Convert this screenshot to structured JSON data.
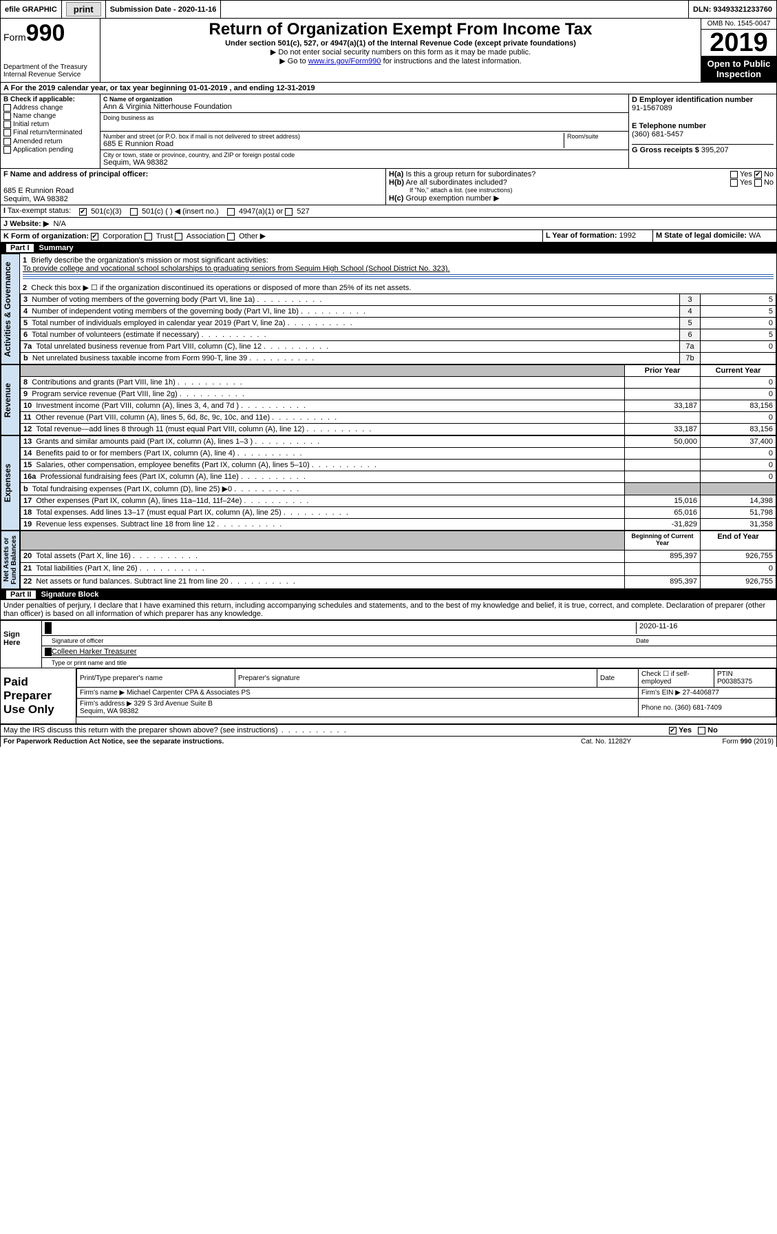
{
  "topbar": {
    "efile": "efile GRAPHIC",
    "print": "print",
    "subdate_label": "Submission Date - 2020-11-16",
    "dln": "DLN: 93493321233760"
  },
  "header": {
    "form_word": "Form",
    "form_num": "990",
    "title": "Return of Organization Exempt From Income Tax",
    "subtitle": "Under section 501(c), 527, or 4947(a)(1) of the Internal Revenue Code (except private foundations)",
    "note1": "Do not enter social security numbers on this form as it may be made public.",
    "note2_pre": "Go to ",
    "note2_link": "www.irs.gov/Form990",
    "note2_post": " for instructions and the latest information.",
    "dept": "Department of the Treasury\nInternal Revenue Service",
    "omb": "OMB No. 1545-0047",
    "year": "2019",
    "openpub": "Open to Public\nInspection",
    "period": "For the 2019 calendar year, or tax year beginning 01-01-2019    , and ending 12-31-2019"
  },
  "boxB": {
    "label": "B Check if applicable:",
    "items": [
      "Address change",
      "Name change",
      "Initial return",
      "Final return/terminated",
      "Amended return",
      "Application pending"
    ]
  },
  "boxC": {
    "label": "C Name of organization",
    "value": "Ann & Virginia Nitterhouse Foundation",
    "dba_label": "Doing business as",
    "dba": ""
  },
  "addr": {
    "label": "Number and street (or P.O. box if mail is not delivered to street address)",
    "room": "Room/suite",
    "street": "685 E Runnion Road",
    "city_label": "City or town, state or province, country, and ZIP or foreign postal code",
    "city": "Sequim, WA  98382"
  },
  "boxD": {
    "label": "D Employer identification number",
    "value": "91-1567089"
  },
  "boxE": {
    "label": "E Telephone number",
    "value": "(360) 681-5457"
  },
  "boxG": {
    "label": "G Gross receipts $",
    "value": "395,207"
  },
  "boxF": {
    "label": "F  Name and address of principal officer:",
    "addr1": "685 E Runnion Road",
    "addr2": "Sequim, WA  98382"
  },
  "boxH": {
    "a": "Is this a group return for subordinates?",
    "b": "Are all subordinates included?",
    "bnote": "If \"No,\" attach a list. (see instructions)",
    "c": "Group exemption number ▶",
    "yes": "Yes",
    "no": "No"
  },
  "taxexempt": {
    "label": "Tax-exempt status:",
    "c3": "501(c)(3)",
    "c": "501(c) (  ) ◀ (insert no.)",
    "a1": "4947(a)(1) or",
    "s527": "527"
  },
  "boxJ": {
    "label": "Website: ▶",
    "value": "N/A"
  },
  "boxK": {
    "label": "K Form of organization:",
    "corp": "Corporation",
    "trust": "Trust",
    "assoc": "Association",
    "other": "Other ▶"
  },
  "boxL": {
    "label": "L Year of formation:",
    "value": "1992"
  },
  "boxM": {
    "label": "M State of legal domicile:",
    "value": "WA"
  },
  "part1": {
    "label": "Part I",
    "title": "Summary"
  },
  "summary": {
    "l1_label": "Briefly describe the organization's mission or most significant activities:",
    "l1_text": "To provide college and vocational school scholarships to graduating seniors from Sequim High School (School District No. 323).",
    "l2": "Check this box ▶ ☐  if the organization discontinued its operations or disposed of more than 25% of its net assets.",
    "vlabel_ag": "Activities & Governance",
    "vlabel_rev": "Revenue",
    "vlabel_exp": "Expenses",
    "vlabel_na": "Net Assets or\nFund Balances",
    "rows_ag": [
      {
        "n": "3",
        "t": "Number of voting members of the governing body (Part VI, line 1a)",
        "c": "3",
        "v": "5"
      },
      {
        "n": "4",
        "t": "Number of independent voting members of the governing body (Part VI, line 1b)",
        "c": "4",
        "v": "5"
      },
      {
        "n": "5",
        "t": "Total number of individuals employed in calendar year 2019 (Part V, line 2a)",
        "c": "5",
        "v": "0"
      },
      {
        "n": "6",
        "t": "Total number of volunteers (estimate if necessary)",
        "c": "6",
        "v": "5"
      },
      {
        "n": "7a",
        "t": "Total unrelated business revenue from Part VIII, column (C), line 12",
        "c": "7a",
        "v": "0"
      },
      {
        "n": "b",
        "t": "Net unrelated business taxable income from Form 990-T, line 39",
        "c": "7b",
        "v": ""
      }
    ],
    "hdr_prior": "Prior Year",
    "hdr_curr": "Current Year",
    "rows_rev": [
      {
        "n": "8",
        "t": "Contributions and grants (Part VIII, line 1h)",
        "p": "",
        "c": "0"
      },
      {
        "n": "9",
        "t": "Program service revenue (Part VIII, line 2g)",
        "p": "",
        "c": "0"
      },
      {
        "n": "10",
        "t": "Investment income (Part VIII, column (A), lines 3, 4, and 7d )",
        "p": "33,187",
        "c": "83,156"
      },
      {
        "n": "11",
        "t": "Other revenue (Part VIII, column (A), lines 5, 6d, 8c, 9c, 10c, and 11e)",
        "p": "",
        "c": "0"
      },
      {
        "n": "12",
        "t": "Total revenue—add lines 8 through 11 (must equal Part VIII, column (A), line 12)",
        "p": "33,187",
        "c": "83,156"
      }
    ],
    "rows_exp": [
      {
        "n": "13",
        "t": "Grants and similar amounts paid (Part IX, column (A), lines 1–3 )",
        "p": "50,000",
        "c": "37,400"
      },
      {
        "n": "14",
        "t": "Benefits paid to or for members (Part IX, column (A), line 4)",
        "p": "",
        "c": "0"
      },
      {
        "n": "15",
        "t": "Salaries, other compensation, employee benefits (Part IX, column (A), lines 5–10)",
        "p": "",
        "c": "0"
      },
      {
        "n": "16a",
        "t": "Professional fundraising fees (Part IX, column (A), line 11e)",
        "p": "",
        "c": "0"
      },
      {
        "n": "b",
        "t": "Total fundraising expenses (Part IX, column (D), line 25) ▶0",
        "p": "—shade—",
        "c": "—shade—"
      },
      {
        "n": "17",
        "t": "Other expenses (Part IX, column (A), lines 11a–11d, 11f–24e)",
        "p": "15,016",
        "c": "14,398"
      },
      {
        "n": "18",
        "t": "Total expenses. Add lines 13–17 (must equal Part IX, column (A), line 25)",
        "p": "65,016",
        "c": "51,798"
      },
      {
        "n": "19",
        "t": "Revenue less expenses. Subtract line 18 from line 12",
        "p": "-31,829",
        "c": "31,358"
      }
    ],
    "hdr_beg": "Beginning of Current Year",
    "hdr_end": "End of Year",
    "rows_na": [
      {
        "n": "20",
        "t": "Total assets (Part X, line 16)",
        "p": "895,397",
        "c": "926,755"
      },
      {
        "n": "21",
        "t": "Total liabilities (Part X, line 26)",
        "p": "",
        "c": "0"
      },
      {
        "n": "22",
        "t": "Net assets or fund balances. Subtract line 21 from line 20",
        "p": "895,397",
        "c": "926,755"
      }
    ]
  },
  "part2": {
    "label": "Part II",
    "title": "Signature Block"
  },
  "perjury": "Under penalties of perjury, I declare that I have examined this return, including accompanying schedules and statements, and to the best of my knowledge and belief, it is true, correct, and complete. Declaration of preparer (other than officer) is based on all information of which preparer has any knowledge.",
  "sign": {
    "here": "Sign\nHere",
    "sig": "Signature of officer",
    "date_label": "Date",
    "date": "2020-11-16",
    "name": "Colleen Harker  Treasurer",
    "name_label": "Type or print name and title"
  },
  "prep": {
    "label": "Paid\nPreparer\nUse Only",
    "h1": "Print/Type preparer's name",
    "h2": "Preparer's signature",
    "h3": "Date",
    "h4": "Check ☐ if self-employed",
    "h5": "PTIN",
    "ptin": "P00385375",
    "firm_label": "Firm's name    ▶",
    "firm": "Michael Carpenter CPA & Associates PS",
    "ein_label": "Firm's EIN ▶",
    "ein": "27-4406877",
    "addr_label": "Firm's address ▶",
    "addr": "329 S 3rd Avenue Suite B\nSequim, WA  98382",
    "phone_label": "Phone no.",
    "phone": "(360) 681-7409"
  },
  "discuss": {
    "text": "May the IRS discuss this return with the preparer shown above? (see instructions)",
    "yes": "Yes",
    "no": "No"
  },
  "footer": {
    "pra": "For Paperwork Reduction Act Notice, see the separate instructions.",
    "cat": "Cat. No. 11282Y",
    "form": "Form 990 (2019)"
  },
  "style": {
    "link_color": "#0000cc",
    "shade": "#bfbfbf",
    "vlabel_bg": "#cfe2f3"
  }
}
